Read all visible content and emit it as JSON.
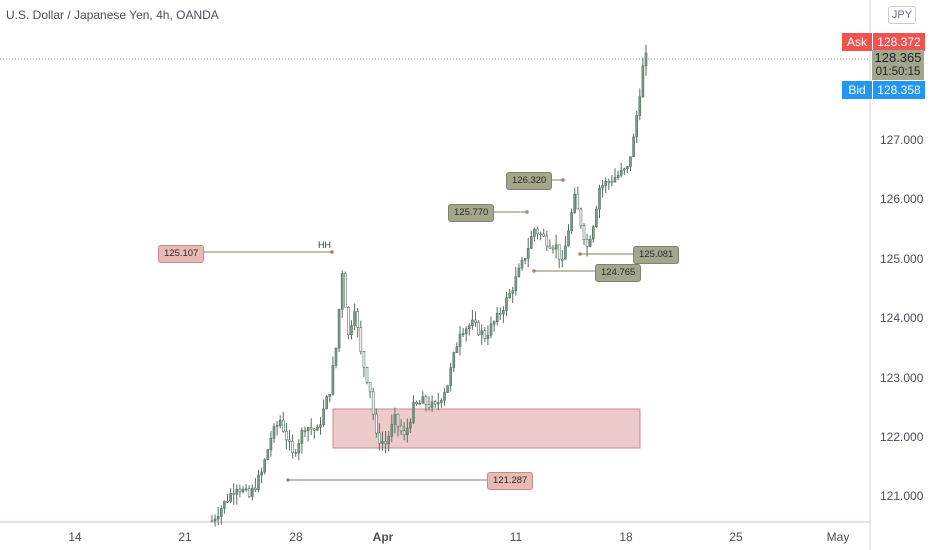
{
  "header": {
    "symbol_title": "U.S. Dollar / Japanese Yen, 4h, OANDA",
    "currency_badge": "JPY"
  },
  "quote": {
    "ask_label": "Ask",
    "ask_value": "128.372",
    "last_value": "128.365",
    "countdown": "01:50:15",
    "bid_label": "Bid",
    "bid_value": "128.358",
    "last_color": "#a3a68c",
    "ask_color": "#ef5350",
    "bid_color": "#2196f3"
  },
  "annotations": {
    "hh_label": "HH",
    "price_labels": [
      "125.107",
      "121.287",
      "125.770",
      "126.320",
      "125.081",
      "124.765"
    ]
  },
  "colors": {
    "up_candle": "#7b9c87",
    "down_candle": "#7b9c87",
    "zone_fill": "#ebc2c2",
    "zone_border": "#c07676",
    "axis_text": "#4a4f5c"
  },
  "chart_data": {
    "type": "candlestick",
    "title": "U.S. Dollar / Japanese Yen, 4h, OANDA",
    "x_tick_labels": [
      "14",
      "21",
      "28",
      "Apr",
      "11",
      "18",
      "25",
      "May"
    ],
    "y_tick_labels": [
      "121.000",
      "122.000",
      "123.000",
      "124.000",
      "125.000",
      "126.000",
      "127.000"
    ],
    "ylim": [
      120.6,
      129.5
    ],
    "last_price": 128.365,
    "demand_zone": {
      "low": 121.8,
      "high": 122.45,
      "from": "Mar 30",
      "to": "Apr 20"
    },
    "key_levels": [
      125.107,
      121.287,
      125.77,
      126.32,
      125.081,
      124.765
    ],
    "close_path": [
      [
        0,
        120.6
      ],
      [
        4,
        120.9
      ],
      [
        8,
        121.2
      ],
      [
        12,
        121.0
      ],
      [
        16,
        121.4
      ],
      [
        19,
        122.0
      ],
      [
        22,
        122.3
      ],
      [
        26,
        121.7
      ],
      [
        30,
        122.2
      ],
      [
        34,
        122.1
      ],
      [
        38,
        122.8
      ],
      [
        40,
        123.5
      ],
      [
        42,
        124.8
      ],
      [
        44,
        123.7
      ],
      [
        46,
        124.2
      ],
      [
        48,
        123.4
      ],
      [
        51,
        122.8
      ],
      [
        53,
        122.0
      ],
      [
        56,
        121.9
      ],
      [
        59,
        122.3
      ],
      [
        62,
        122.0
      ],
      [
        65,
        122.5
      ],
      [
        68,
        122.6
      ],
      [
        72,
        122.5
      ],
      [
        76,
        122.9
      ],
      [
        80,
        123.8
      ],
      [
        84,
        123.9
      ],
      [
        88,
        123.7
      ],
      [
        92,
        124.0
      ],
      [
        96,
        124.4
      ],
      [
        100,
        124.9
      ],
      [
        104,
        125.5
      ],
      [
        108,
        125.3
      ],
      [
        111,
        125.2
      ],
      [
        113,
        124.9
      ],
      [
        115,
        125.5
      ],
      [
        117,
        126.0
      ],
      [
        119,
        125.6
      ],
      [
        121,
        125.2
      ],
      [
        123,
        125.6
      ],
      [
        125,
        126.2
      ],
      [
        128,
        126.3
      ],
      [
        131,
        126.4
      ],
      [
        134,
        126.5
      ],
      [
        136,
        127.0
      ],
      [
        138,
        127.8
      ],
      [
        139,
        128.2
      ],
      [
        140,
        128.365
      ]
    ]
  }
}
